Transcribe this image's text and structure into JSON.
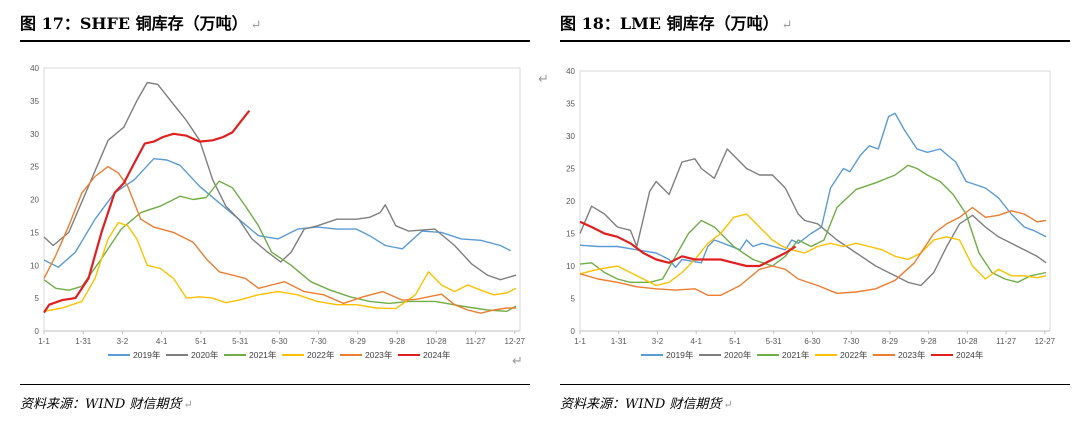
{
  "return_mark": "↵",
  "charts": [
    {
      "fig_title": "图 17：SHFE 铜库存（万吨）",
      "source": "资料来源：WIND 财信期货",
      "chart_data": {
        "type": "line",
        "yticks": [
          0,
          5,
          10,
          15,
          20,
          25,
          30,
          35,
          40
        ],
        "ylim": [
          0,
          40
        ],
        "xlim": [
          1,
          365
        ],
        "xtick_labels": [
          "1-1",
          "1-31",
          "3-2",
          "4-1",
          "5-1",
          "5-31",
          "6-30",
          "7-30",
          "8-29",
          "9-28",
          "10-28",
          "11-27",
          "12-27"
        ],
        "xtick_days": [
          1,
          31,
          61,
          91,
          121,
          151,
          181,
          211,
          241,
          271,
          301,
          331,
          361
        ],
        "legend": "bottom",
        "series": [
          {
            "name": "2019年",
            "color": "#5b9bd5",
            "x": [
              1,
              12,
              25,
              40,
              55,
              70,
              85,
              95,
              105,
              120,
              135,
              150,
              165,
              180,
              195,
              210,
              225,
              240,
              250,
              262,
              275,
              290,
              305,
              320,
              335,
              350,
              358
            ],
            "y": [
              10.8,
              9.7,
              12,
              17,
              21,
              23,
              26.2,
              26,
              25.2,
              22,
              19.5,
              17,
              14.5,
              14,
              15.5,
              15.8,
              15.5,
              15.5,
              14.5,
              13,
              12.5,
              15.2,
              15,
              14,
              13.8,
              13,
              12.2
            ]
          },
          {
            "name": "2020年",
            "color": "#7f7f7f",
            "x": [
              1,
              8,
              20,
              35,
              50,
              62,
              72,
              80,
              88,
              98,
              110,
              120,
              130,
              140,
              150,
              160,
              172,
              182,
              190,
              200,
              210,
              225,
              240,
              250,
              258,
              262,
              270,
              280,
              300,
              315,
              328,
              340,
              350,
              362
            ],
            "y": [
              14.3,
              13,
              15,
              22,
              29,
              31,
              35,
              37.8,
              37.5,
              35,
              32,
              29,
              23,
              19,
              17,
              14,
              12,
              10.5,
              12,
              15.5,
              16,
              17,
              17,
              17.3,
              18,
              19.2,
              16,
              15.2,
              15.5,
              13,
              10.2,
              8.5,
              7.8,
              8.5
            ]
          },
          {
            "name": "2021年",
            "color": "#70ad47",
            "x": [
              1,
              10,
              20,
              30,
              45,
              60,
              75,
              90,
              105,
              115,
              125,
              135,
              145,
              155,
              165,
              175,
              190,
              205,
              220,
              235,
              250,
              265,
              280,
              300,
              320,
              340,
              355,
              362
            ],
            "y": [
              7.8,
              6.5,
              6.2,
              6.8,
              11,
              15.5,
              18,
              19,
              20.5,
              20,
              20.3,
              22.8,
              21.8,
              19,
              16,
              12,
              10,
              7.5,
              6.2,
              5.2,
              4.5,
              4.2,
              4.5,
              4.5,
              3.8,
              3.2,
              3,
              3.8
            ]
          },
          {
            "name": "2022年",
            "color": "#ffc000",
            "x": [
              1,
              15,
              30,
              40,
              50,
              58,
              65,
              72,
              80,
              90,
              100,
              110,
              120,
              130,
              140,
              150,
              165,
              180,
              195,
              210,
              225,
              240,
              255,
              270,
              285,
              295,
              305,
              315,
              325,
              335,
              345,
              355,
              362
            ],
            "y": [
              3,
              3.5,
              4.5,
              8,
              14,
              16.5,
              16,
              14,
              10,
              9.5,
              8,
              5,
              5.2,
              5,
              4.3,
              4.7,
              5.5,
              6,
              5.5,
              4.5,
              4,
              4,
              3.5,
              3.4,
              5.5,
              9,
              7,
              6,
              7,
              6.2,
              5.5,
              5.8,
              6.5
            ]
          },
          {
            "name": "2023年",
            "color": "#ed7d31",
            "x": [
              1,
              10,
              20,
              30,
              40,
              50,
              58,
              65,
              75,
              85,
              100,
              115,
              125,
              135,
              145,
              155,
              165,
              175,
              185,
              200,
              215,
              230,
              245,
              260,
              275,
              285,
              295,
              305,
              315,
              325,
              335,
              345,
              355,
              362
            ],
            "y": [
              8,
              11.5,
              16,
              21,
              23.5,
              25,
              24,
              22,
              17,
              15.8,
              15,
              13.5,
              11,
              9,
              8.5,
              8,
              6.5,
              7,
              7.5,
              6,
              5.5,
              4.2,
              5.2,
              6,
              4.7,
              4.8,
              5.2,
              5.6,
              4,
              3.2,
              2.7,
              3.2,
              3.5,
              3.5
            ]
          },
          {
            "name": "2024年",
            "color": "#e02020",
            "x": [
              1,
              5,
              15,
              25,
              35,
              45,
              55,
              62,
              70,
              78,
              85,
              92,
              100,
              110,
              120,
              130,
              138,
              145,
              152,
              158
            ],
            "y": [
              2.8,
              4,
              4.7,
              5,
              8,
              15,
              21,
              22.5,
              25.5,
              28.5,
              28.8,
              29.5,
              30,
              29.7,
              28.8,
              29,
              29.5,
              30.2,
              32,
              33.5
            ]
          }
        ]
      }
    },
    {
      "fig_title": "图 18：LME 铜库存（万吨）",
      "source": "资料来源：WIND 财信期货",
      "chart_data": {
        "type": "line",
        "yticks": [
          0,
          5,
          10,
          15,
          20,
          25,
          30,
          35,
          40
        ],
        "ylim": [
          0,
          40
        ],
        "xlim": [
          1,
          365
        ],
        "xtick_labels": [
          "1-1",
          "1-31",
          "3-2",
          "4-1",
          "5-1",
          "5-31",
          "6-30",
          "7-30",
          "8-29",
          "9-28",
          "10-28",
          "11-27",
          "12-27"
        ],
        "xtick_days": [
          1,
          31,
          61,
          91,
          121,
          151,
          181,
          211,
          241,
          271,
          301,
          331,
          361
        ],
        "legend": "bottom",
        "series": [
          {
            "name": "2019年",
            "color": "#5b9bd5",
            "x": [
              1,
              15,
              30,
              45,
              60,
              70,
              75,
              80,
              95,
              100,
              105,
              112,
              125,
              130,
              135,
              142,
              160,
              165,
              170,
              180,
              188,
              195,
              205,
              210,
              218,
              225,
              232,
              240,
              245,
              252,
              262,
              270,
              280,
              292,
              300,
              315,
              325,
              335,
              345,
              352,
              362
            ],
            "y": [
              13.2,
              13,
              13,
              12.5,
              12,
              11,
              9.8,
              11,
              10.5,
              13,
              14,
              13.5,
              12.5,
              14,
              13,
              13.5,
              12.5,
              14,
              13.5,
              15,
              16,
              22,
              25,
              24.5,
              27,
              28.5,
              28,
              33,
              33.5,
              31,
              28,
              27.5,
              28,
              26,
              23,
              22,
              20.5,
              18,
              16,
              15.5,
              14.5
            ]
          },
          {
            "name": "2020年",
            "color": "#7f7f7f",
            "x": [
              1,
              10,
              20,
              30,
              40,
              45,
              55,
              60,
              70,
              80,
              90,
              95,
              105,
              115,
              120,
              130,
              140,
              150,
              160,
              170,
              175,
              185,
              200,
              215,
              230,
              245,
              255,
              265,
              275,
              285,
              295,
              305,
              315,
              325,
              335,
              345,
              355,
              362
            ],
            "y": [
              15,
              19.2,
              18,
              16,
              15.5,
              13,
              21.5,
              23,
              21,
              26,
              26.5,
              25,
              23.5,
              28,
              27,
              25,
              24,
              24,
              22,
              18,
              17,
              16.5,
              14,
              12,
              10,
              8.5,
              7.5,
              7,
              9,
              13,
              16.5,
              17.8,
              16,
              14.5,
              13.5,
              12.5,
              11.5,
              10.5
            ]
          },
          {
            "name": "2021年",
            "color": "#70ad47",
            "x": [
              1,
              10,
              20,
              30,
              40,
              55,
              65,
              75,
              85,
              95,
              105,
              120,
              135,
              150,
              160,
              170,
              180,
              190,
              200,
              215,
              230,
              245,
              255,
              262,
              270,
              280,
              290,
              300,
              310,
              320,
              330,
              340,
              350,
              362
            ],
            "y": [
              10.3,
              10.5,
              9,
              8,
              7.5,
              7.5,
              8,
              11.5,
              15,
              17,
              16,
              13,
              11,
              10,
              11.5,
              14,
              13,
              14,
              19,
              21.8,
              22.8,
              24,
              25.5,
              25,
              24,
              23,
              21,
              18,
              12,
              9,
              8,
              7.5,
              8.5,
              9
            ]
          },
          {
            "name": "2022年",
            "color": "#ffc000",
            "x": [
              1,
              15,
              30,
              45,
              60,
              70,
              80,
              90,
              100,
              110,
              120,
              130,
              140,
              150,
              158,
              165,
              175,
              185,
              195,
              205,
              215,
              225,
              235,
              245,
              255,
              265,
              275,
              285,
              295,
              305,
              315,
              325,
              335,
              345,
              355,
              362
            ],
            "y": [
              8.8,
              9.5,
              10,
              8.5,
              7,
              7.5,
              9,
              11,
              13.5,
              15,
              17.5,
              18,
              16,
              14,
              13,
              12.5,
              12,
              13,
              13.5,
              13,
              13.5,
              13,
              12.5,
              11.5,
              11,
              12,
              14,
              14.5,
              14,
              10,
              8,
              9.5,
              8.5,
              8.5,
              8.2,
              8.5
            ]
          },
          {
            "name": "2023年",
            "color": "#ed7d31",
            "x": [
              1,
              15,
              30,
              45,
              60,
              75,
              90,
              100,
              110,
              125,
              140,
              150,
              160,
              170,
              185,
              200,
              215,
              230,
              245,
              260,
              275,
              285,
              295,
              305,
              315,
              325,
              335,
              345,
              355,
              362
            ],
            "y": [
              8.8,
              8,
              7.5,
              6.8,
              6.5,
              6.3,
              6.5,
              5.5,
              5.5,
              7,
              9.5,
              10,
              9.5,
              8,
              7,
              5.8,
              6,
              6.5,
              7.8,
              10.5,
              15,
              16.5,
              17.5,
              19,
              17.5,
              17.8,
              18.5,
              18,
              16.8,
              17
            ]
          },
          {
            "name": "2024年",
            "color": "#e02020",
            "x": [
              1,
              10,
              20,
              30,
              40,
              50,
              60,
              70,
              80,
              90,
              100,
              110,
              120,
              130,
              140,
              150,
              160,
              168
            ],
            "y": [
              16.8,
              16,
              15,
              14.5,
              13.5,
              12,
              11,
              10.5,
              11.5,
              11,
              11,
              11,
              10.5,
              10,
              10,
              11,
              12,
              13
            ]
          }
        ]
      }
    }
  ]
}
